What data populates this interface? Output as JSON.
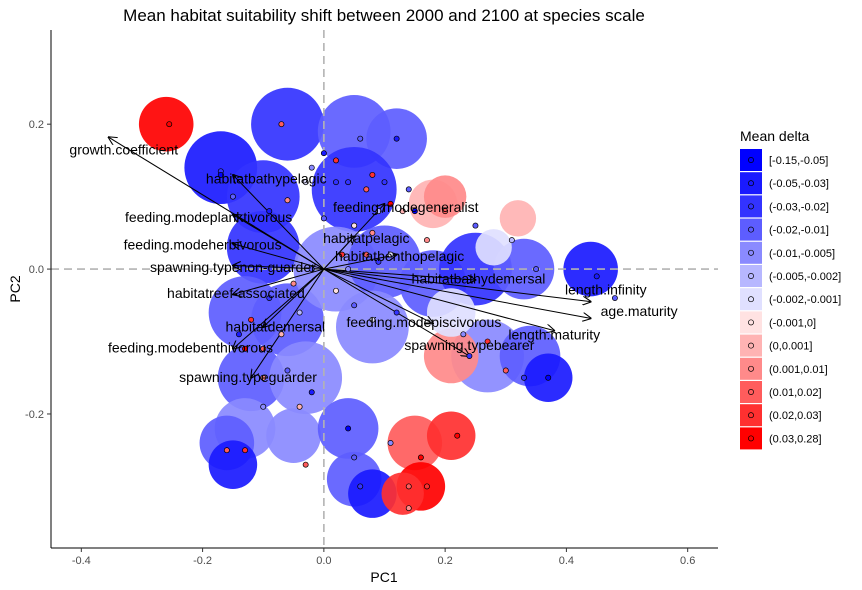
{
  "chart_data": {
    "type": "scatter",
    "title": "Mean habitat suitability shift between 2000 and 2100 at species scale",
    "xlabel": "PC1",
    "ylabel": "PC2",
    "xlim": [
      -0.45,
      0.65
    ],
    "ylim": [
      -0.385,
      0.33
    ],
    "xticks": [
      -0.4,
      -0.2,
      0.0,
      0.2,
      0.4,
      0.6
    ],
    "xtick_labels": [
      "-0.4",
      "-0.2",
      "0.0",
      "0.2",
      "0.4",
      "0.6"
    ],
    "yticks": [
      -0.2,
      0.0,
      0.2
    ],
    "ytick_labels": [
      "-0.2",
      "0.0",
      "0.2"
    ],
    "reference_lines": {
      "x": 0,
      "y": 0,
      "style": "dashed grey"
    },
    "grid": false,
    "legend": {
      "title": "Mean delta",
      "placement": "right",
      "entries": [
        {
          "label": "[-0.15,-0.05]",
          "color": "#0000ff"
        },
        {
          "label": "(-0.05,-0.03]",
          "color": "#1a1aff"
        },
        {
          "label": "(-0.03,-0.02]",
          "color": "#3333ff"
        },
        {
          "label": "(-0.02,-0.01]",
          "color": "#5d5dff"
        },
        {
          "label": "(-0.01,-0.005]",
          "color": "#8a8aff"
        },
        {
          "label": "(-0.005,-0.002]",
          "color": "#b7b7ff"
        },
        {
          "label": "(-0.002,-0.001]",
          "color": "#e0e0ff"
        },
        {
          "label": "(-0.001,0]",
          "color": "#ffe2e2"
        },
        {
          "label": "(0,0.001]",
          "color": "#ffb3b3"
        },
        {
          "label": "(0.001,0.01]",
          "color": "#ff8a8a"
        },
        {
          "label": "(0.01,0.02]",
          "color": "#ff5c5c"
        },
        {
          "label": "(0.02,0.03]",
          "color": "#ff3030"
        },
        {
          "label": "(0.03,0.28]",
          "color": "#ff0000"
        }
      ]
    },
    "regions": [
      {
        "x": -0.26,
        "y": 0.2,
        "r": 0.045,
        "cls": 12
      },
      {
        "x": -0.17,
        "y": 0.14,
        "r": 0.06,
        "cls": 1
      },
      {
        "x": -0.1,
        "y": 0.1,
        "r": 0.06,
        "cls": 2
      },
      {
        "x": -0.06,
        "y": 0.2,
        "r": 0.06,
        "cls": 2
      },
      {
        "x": 0.05,
        "y": 0.19,
        "r": 0.06,
        "cls": 3
      },
      {
        "x": 0.12,
        "y": 0.18,
        "r": 0.05,
        "cls": 3
      },
      {
        "x": 0.05,
        "y": 0.11,
        "r": 0.07,
        "cls": 2
      },
      {
        "x": -0.1,
        "y": 0.03,
        "r": 0.06,
        "cls": 2
      },
      {
        "x": -0.13,
        "y": -0.06,
        "r": 0.06,
        "cls": 3
      },
      {
        "x": -0.06,
        "y": -0.07,
        "r": 0.06,
        "cls": 3
      },
      {
        "x": 0.02,
        "y": 0.0,
        "r": 0.07,
        "cls": 4
      },
      {
        "x": 0.1,
        "y": 0.01,
        "r": 0.06,
        "cls": 3
      },
      {
        "x": 0.08,
        "y": -0.08,
        "r": 0.06,
        "cls": 4
      },
      {
        "x": 0.18,
        "y": -0.02,
        "r": 0.055,
        "cls": 3
      },
      {
        "x": 0.25,
        "y": 0.0,
        "r": 0.06,
        "cls": 2
      },
      {
        "x": 0.33,
        "y": 0.0,
        "r": 0.05,
        "cls": 3
      },
      {
        "x": 0.44,
        "y": 0.0,
        "r": 0.045,
        "cls": 1
      },
      {
        "x": -0.12,
        "y": -0.15,
        "r": 0.055,
        "cls": 3
      },
      {
        "x": -0.03,
        "y": -0.15,
        "r": 0.06,
        "cls": 4
      },
      {
        "x": -0.13,
        "y": -0.22,
        "r": 0.05,
        "cls": 4
      },
      {
        "x": -0.16,
        "y": -0.24,
        "r": 0.045,
        "cls": 3
      },
      {
        "x": -0.05,
        "y": -0.23,
        "r": 0.045,
        "cls": 4
      },
      {
        "x": -0.15,
        "y": -0.27,
        "r": 0.04,
        "cls": 1
      },
      {
        "x": 0.04,
        "y": -0.22,
        "r": 0.05,
        "cls": 3
      },
      {
        "x": 0.05,
        "y": -0.29,
        "r": 0.045,
        "cls": 3
      },
      {
        "x": 0.08,
        "y": -0.31,
        "r": 0.04,
        "cls": 1
      },
      {
        "x": 0.27,
        "y": -0.12,
        "r": 0.06,
        "cls": 4
      },
      {
        "x": 0.34,
        "y": -0.12,
        "r": 0.05,
        "cls": 3
      },
      {
        "x": 0.37,
        "y": -0.15,
        "r": 0.04,
        "cls": 1
      },
      {
        "x": 0.21,
        "y": -0.12,
        "r": 0.045,
        "cls": 9
      },
      {
        "x": 0.15,
        "y": -0.24,
        "r": 0.045,
        "cls": 10
      },
      {
        "x": 0.21,
        "y": -0.23,
        "r": 0.04,
        "cls": 11
      },
      {
        "x": 0.16,
        "y": -0.3,
        "r": 0.04,
        "cls": 12
      },
      {
        "x": 0.13,
        "y": -0.31,
        "r": 0.035,
        "cls": 11
      },
      {
        "x": 0.18,
        "y": 0.09,
        "r": 0.04,
        "cls": 8
      },
      {
        "x": 0.2,
        "y": 0.1,
        "r": 0.035,
        "cls": 9
      },
      {
        "x": 0.32,
        "y": 0.07,
        "r": 0.03,
        "cls": 8
      },
      {
        "x": 0.28,
        "y": 0.03,
        "r": 0.03,
        "cls": 6
      },
      {
        "x": 0.21,
        "y": -0.06,
        "r": 0.04,
        "cls": 6
      }
    ],
    "points": [
      {
        "x": -0.255,
        "y": 0.2,
        "cls": 12
      },
      {
        "x": -0.17,
        "y": 0.135,
        "cls": 2
      },
      {
        "x": -0.17,
        "y": 0.13,
        "cls": 0
      },
      {
        "x": -0.15,
        "y": 0.1,
        "cls": 3
      },
      {
        "x": -0.09,
        "y": 0.08,
        "cls": 1
      },
      {
        "x": -0.07,
        "y": 0.2,
        "cls": 10
      },
      {
        "x": -0.06,
        "y": 0.095,
        "cls": 9
      },
      {
        "x": -0.03,
        "y": 0.12,
        "cls": 6
      },
      {
        "x": 0.0,
        "y": 0.07,
        "cls": 3
      },
      {
        "x": 0.02,
        "y": 0.15,
        "cls": 11
      },
      {
        "x": 0.04,
        "y": 0.12,
        "cls": 2
      },
      {
        "x": 0.05,
        "y": 0.06,
        "cls": 7
      },
      {
        "x": 0.06,
        "y": 0.18,
        "cls": 3
      },
      {
        "x": 0.07,
        "y": 0.11,
        "cls": 10
      },
      {
        "x": 0.08,
        "y": 0.13,
        "cls": 11
      },
      {
        "x": 0.09,
        "y": 0.08,
        "cls": 5
      },
      {
        "x": 0.1,
        "y": 0.12,
        "cls": 2
      },
      {
        "x": 0.11,
        "y": 0.09,
        "cls": 12
      },
      {
        "x": 0.12,
        "y": 0.18,
        "cls": 1
      },
      {
        "x": 0.13,
        "y": 0.08,
        "cls": 8
      },
      {
        "x": 0.14,
        "y": 0.11,
        "cls": 3
      },
      {
        "x": 0.15,
        "y": 0.08,
        "cls": 0
      },
      {
        "x": 0.03,
        "y": 0.02,
        "cls": 11
      },
      {
        "x": 0.04,
        "y": 0.0,
        "cls": 4
      },
      {
        "x": 0.07,
        "y": 0.02,
        "cls": 10
      },
      {
        "x": 0.09,
        "y": 0.01,
        "cls": 2
      },
      {
        "x": 0.11,
        "y": 0.02,
        "cls": 6
      },
      {
        "x": -0.02,
        "y": 0.0,
        "cls": 3
      },
      {
        "x": -0.05,
        "y": -0.02,
        "cls": 9
      },
      {
        "x": -0.09,
        "y": -0.04,
        "cls": 2
      },
      {
        "x": -0.12,
        "y": -0.07,
        "cls": 11
      },
      {
        "x": -0.14,
        "y": -0.09,
        "cls": 1
      },
      {
        "x": -0.1,
        "y": -0.11,
        "cls": 10
      },
      {
        "x": -0.07,
        "y": -0.09,
        "cls": 8
      },
      {
        "x": -0.04,
        "y": -0.06,
        "cls": 5
      },
      {
        "x": -0.13,
        "y": -0.11,
        "cls": 12
      },
      {
        "x": 0.02,
        "y": -0.03,
        "cls": 7
      },
      {
        "x": 0.05,
        "y": -0.05,
        "cls": 3
      },
      {
        "x": 0.08,
        "y": -0.07,
        "cls": 6
      },
      {
        "x": 0.12,
        "y": -0.06,
        "cls": 2
      },
      {
        "x": -0.1,
        "y": -0.15,
        "cls": 9
      },
      {
        "x": -0.06,
        "y": -0.14,
        "cls": 3
      },
      {
        "x": -0.02,
        "y": -0.17,
        "cls": 1
      },
      {
        "x": -0.1,
        "y": -0.19,
        "cls": 4
      },
      {
        "x": -0.16,
        "y": -0.25,
        "cls": 10
      },
      {
        "x": -0.13,
        "y": -0.25,
        "cls": 11
      },
      {
        "x": -0.04,
        "y": -0.19,
        "cls": 8
      },
      {
        "x": -0.03,
        "y": -0.27,
        "cls": 10
      },
      {
        "x": 0.04,
        "y": -0.22,
        "cls": 0
      },
      {
        "x": 0.05,
        "y": -0.26,
        "cls": 3
      },
      {
        "x": 0.06,
        "y": -0.3,
        "cls": 2
      },
      {
        "x": 0.11,
        "y": -0.24,
        "cls": 4
      },
      {
        "x": 0.16,
        "y": -0.26,
        "cls": 12
      },
      {
        "x": 0.14,
        "y": -0.3,
        "cls": 10
      },
      {
        "x": 0.14,
        "y": -0.33,
        "cls": 9
      },
      {
        "x": 0.17,
        "y": -0.3,
        "cls": 11
      },
      {
        "x": 0.22,
        "y": -0.23,
        "cls": 12
      },
      {
        "x": 0.23,
        "y": -0.09,
        "cls": 4
      },
      {
        "x": 0.24,
        "y": -0.12,
        "cls": 2
      },
      {
        "x": 0.27,
        "y": -0.1,
        "cls": 11
      },
      {
        "x": 0.3,
        "y": -0.14,
        "cls": 10
      },
      {
        "x": 0.33,
        "y": -0.15,
        "cls": 2
      },
      {
        "x": 0.37,
        "y": -0.15,
        "cls": 0
      },
      {
        "x": 0.17,
        "y": 0.04,
        "cls": 9
      },
      {
        "x": 0.2,
        "y": 0.08,
        "cls": 10
      },
      {
        "x": 0.25,
        "y": 0.06,
        "cls": 3
      },
      {
        "x": 0.31,
        "y": 0.04,
        "cls": 5
      },
      {
        "x": 0.35,
        "y": 0.0,
        "cls": 3
      },
      {
        "x": 0.45,
        "y": -0.01,
        "cls": 1
      },
      {
        "x": 0.48,
        "y": -0.04,
        "cls": 3
      },
      {
        "x": 0.02,
        "y": 0.12,
        "cls": 2
      },
      {
        "x": 0.0,
        "y": 0.16,
        "cls": 1
      },
      {
        "x": -0.02,
        "y": 0.14,
        "cls": 4
      },
      {
        "x": 0.08,
        "y": 0.05,
        "cls": 9
      }
    ],
    "loadings": [
      {
        "label": "growth.coefficient",
        "x": -0.355,
        "y": 0.182,
        "tx": -0.33,
        "ty": 0.165,
        "anchor": "middle"
      },
      {
        "label": "habitatbathypelagic",
        "x": -0.15,
        "y": 0.13,
        "tx": -0.095,
        "ty": 0.125,
        "anchor": "middle"
      },
      {
        "label": "feeding.modeplanktivorous",
        "x": -0.15,
        "y": 0.075,
        "tx": -0.19,
        "ty": 0.072,
        "anchor": "middle"
      },
      {
        "label": "feeding.modeherbivorous",
        "x": -0.15,
        "y": 0.035,
        "tx": -0.2,
        "ty": 0.034,
        "anchor": "middle"
      },
      {
        "label": "spawning.typenon-guarder",
        "x": -0.15,
        "y": 0.005,
        "tx": -0.15,
        "ty": 0.003,
        "anchor": "middle"
      },
      {
        "label": "habitatreef-associated",
        "x": -0.15,
        "y": -0.035,
        "tx": -0.145,
        "ty": -0.033,
        "anchor": "middle"
      },
      {
        "label": "habitatdemersal",
        "x": -0.1,
        "y": -0.08,
        "tx": -0.08,
        "ty": -0.079,
        "anchor": "middle"
      },
      {
        "label": "feeding.modebenthivorous",
        "x": -0.15,
        "y": -0.11,
        "tx": -0.22,
        "ty": -0.108,
        "anchor": "middle"
      },
      {
        "label": "spawning.typeguarder",
        "x": -0.12,
        "y": -0.15,
        "tx": -0.125,
        "ty": -0.149,
        "anchor": "middle"
      },
      {
        "label": "feeding.modegeneralist",
        "x": 0.1,
        "y": 0.09,
        "tx": 0.135,
        "ty": 0.086,
        "anchor": "middle"
      },
      {
        "label": "habitatpelagic",
        "x": 0.05,
        "y": 0.045,
        "tx": 0.07,
        "ty": 0.043,
        "anchor": "middle"
      },
      {
        "label": "habitatbenthopelagic",
        "x": 0.12,
        "y": 0.02,
        "tx": 0.125,
        "ty": 0.018,
        "anchor": "middle"
      },
      {
        "label": "habitatbathydemersal",
        "x": 0.25,
        "y": -0.015,
        "tx": 0.255,
        "ty": -0.013,
        "anchor": "middle"
      },
      {
        "label": "length.infinity",
        "x": 0.44,
        "y": -0.045,
        "tx": 0.465,
        "ty": -0.028,
        "anchor": "middle"
      },
      {
        "label": "age.maturity",
        "x": 0.44,
        "y": -0.068,
        "tx": 0.52,
        "ty": -0.058,
        "anchor": "middle"
      },
      {
        "label": "feeding.modepiscivorous",
        "x": 0.18,
        "y": -0.075,
        "tx": 0.165,
        "ty": -0.073,
        "anchor": "middle"
      },
      {
        "label": "length.maturity",
        "x": 0.38,
        "y": -0.085,
        "tx": 0.38,
        "ty": -0.09,
        "anchor": "middle"
      },
      {
        "label": "spawning.typebearer",
        "x": 0.24,
        "y": -0.12,
        "tx": 0.24,
        "ty": -0.105,
        "anchor": "middle"
      }
    ]
  }
}
